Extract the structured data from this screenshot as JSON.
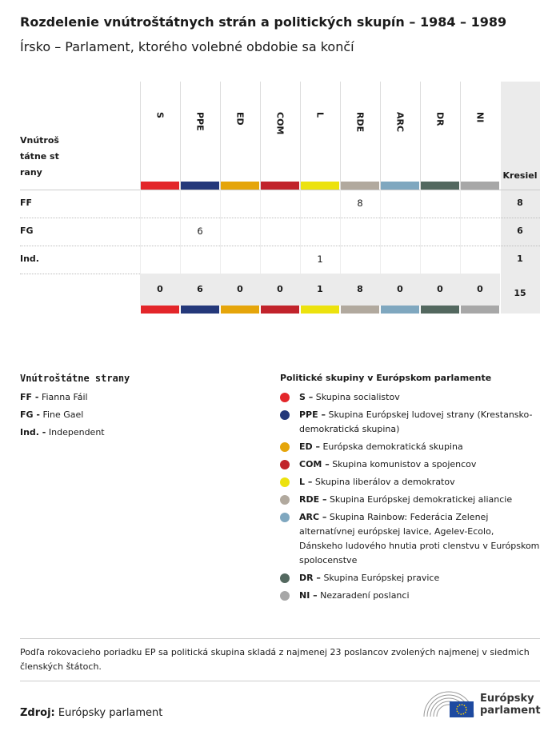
{
  "header": {
    "title": "Rozdelenie vnútroštátnych strán a politických skupín – 1984 – 1989",
    "subtitle": "Írsko – Parlament, ktorého volebné obdobie sa končí"
  },
  "table": {
    "row_header": "Vnútroštátne strany",
    "total_header": "Kresiel",
    "groups": [
      {
        "code": "S",
        "color": "#e3262a"
      },
      {
        "code": "PPE",
        "color": "#24387a"
      },
      {
        "code": "ED",
        "color": "#e5a50a"
      },
      {
        "code": "COM",
        "color": "#c1232b"
      },
      {
        "code": "L",
        "color": "#ece20e"
      },
      {
        "code": "RDE",
        "color": "#b1a99e"
      },
      {
        "code": "ARC",
        "color": "#7fa7bf"
      },
      {
        "code": "DR",
        "color": "#53685f"
      },
      {
        "code": "NI",
        "color": "#a7a7a7"
      }
    ],
    "rows": [
      {
        "party": "FF",
        "cells": [
          null,
          null,
          null,
          null,
          null,
          8,
          null,
          null,
          null
        ],
        "total": 8
      },
      {
        "party": "FG",
        "cells": [
          null,
          6,
          null,
          null,
          null,
          null,
          null,
          null,
          null
        ],
        "total": 6
      },
      {
        "party": "Ind.",
        "cells": [
          null,
          null,
          null,
          null,
          1,
          null,
          null,
          null,
          null
        ],
        "total": 1
      }
    ],
    "totals": [
      0,
      6,
      0,
      0,
      1,
      8,
      0,
      0,
      0
    ],
    "grand_total": 15
  },
  "legend": {
    "parties_title": "Vnútroštátne strany",
    "parties": [
      {
        "code": "FF -",
        "name": "Fianna Fáil"
      },
      {
        "code": "FG -",
        "name": "Fine Gael"
      },
      {
        "code": "Ind. -",
        "name": "Independent"
      }
    ],
    "groups_title": "Politické skupiny v Európskom parlamente",
    "groups": [
      {
        "code": "S –",
        "name": "Skupina socialistov"
      },
      {
        "code": "PPE –",
        "name": "Skupina Európskej ludovej strany (Krestansko-demokratická skupina)"
      },
      {
        "code": "ED –",
        "name": "Európska demokratická skupina"
      },
      {
        "code": "COM –",
        "name": "Skupina komunistov a spojencov"
      },
      {
        "code": "L –",
        "name": "Skupina liberálov a demokratov"
      },
      {
        "code": "RDE –",
        "name": "Skupina Európskej demokratickej aliancie"
      },
      {
        "code": "ARC –",
        "name": "Skupina Rainbow: Federácia Zelenej alternatívnej európskej lavice, Agelev-Ecolo, Dánskeho ludového hnutia proti clenstvu v Európskom spolocenstve"
      },
      {
        "code": "DR –",
        "name": "Skupina Európskej pravice"
      },
      {
        "code": "NI –",
        "name": "Nezaradení poslanci"
      }
    ]
  },
  "note": "Podľa rokovacieho poriadku EP sa politická skupina skladá z najmenej 23 poslancov zvolených najmenej v siedmich členských štátoch.",
  "source": {
    "label": "Zdroj:",
    "text": "Európsky parlament"
  },
  "logo": {
    "line1": "Európsky",
    "line2": "parlament"
  }
}
